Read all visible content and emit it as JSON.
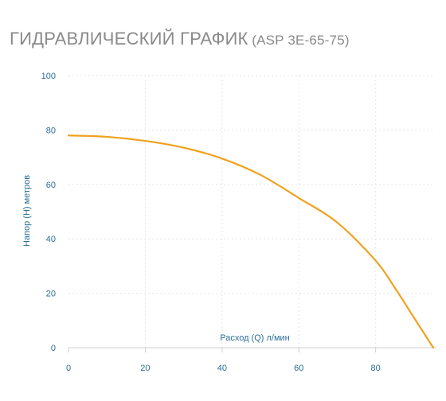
{
  "title": {
    "main": "Гидравлический график",
    "model": "(ASP 3E-65-75)"
  },
  "chart_data": {
    "type": "line",
    "title": "Гидравлический график (ASP 3E-65-75)",
    "xlabel": "Расход (Q) л/мин",
    "ylabel": "Напор (H) метров",
    "xlim": [
      0,
      95
    ],
    "ylim": [
      0,
      100
    ],
    "x_ticks": [
      "0",
      "20",
      "40",
      "60",
      "80"
    ],
    "y_ticks": [
      "0",
      "20",
      "40",
      "60",
      "80",
      "100"
    ],
    "grid": true,
    "series": [
      {
        "x": [
          0,
          10,
          20,
          30,
          40,
          50,
          60,
          70,
          80,
          85,
          90,
          95
        ],
        "y": [
          78,
          77.5,
          76,
          73.5,
          69.5,
          63.5,
          55,
          46,
          32,
          22,
          11,
          0
        ]
      }
    ],
    "colors": {
      "line": "#f0a11e",
      "tick_text": "#2b6f96",
      "grid": "#e6e6e6",
      "axis": "#cfcfcf"
    }
  }
}
